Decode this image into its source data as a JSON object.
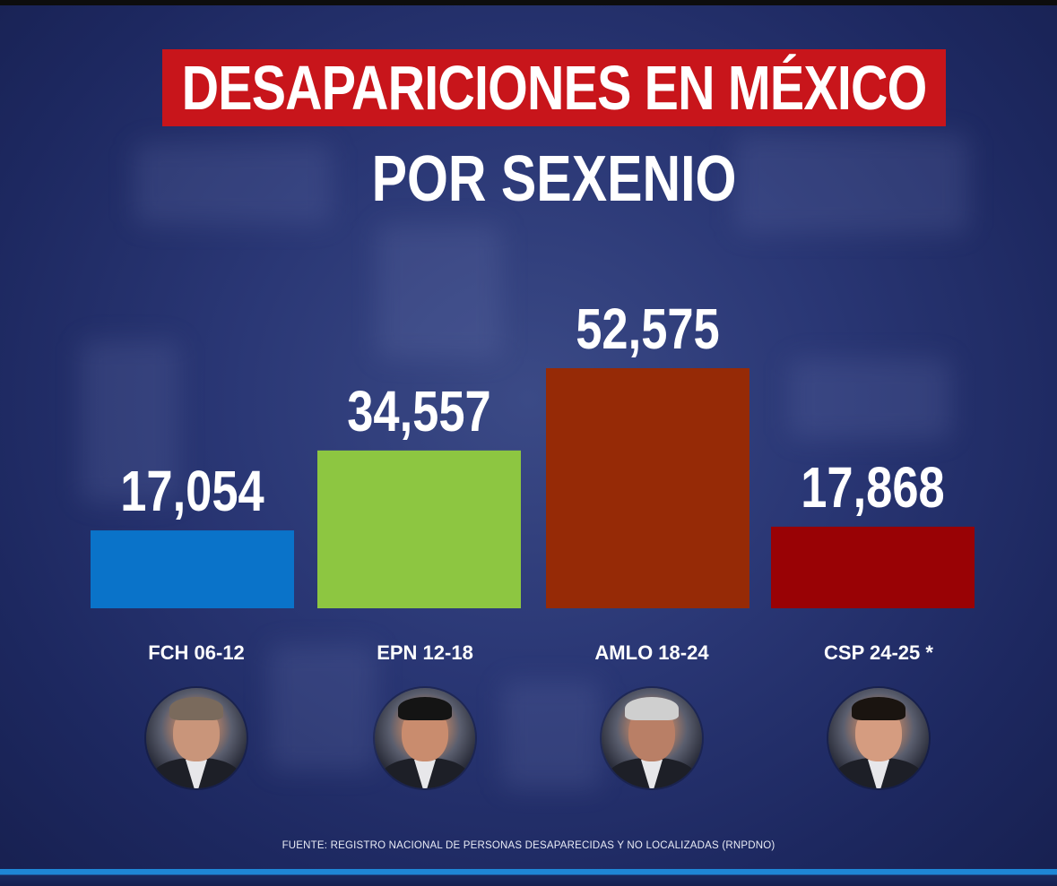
{
  "header": {
    "title": "DESAPARICIONES EN MÉXICO",
    "subtitle": "POR SEXENIO"
  },
  "chart_data": {
    "type": "bar",
    "title": "DESAPARICIONES EN MÉXICO POR SEXENIO",
    "categories": [
      "FCH 06-12",
      "EPN 12-18",
      "AMLO 18-24",
      "CSP 24-25 *"
    ],
    "values": [
      17054,
      34557,
      52575,
      17868
    ],
    "value_labels": [
      "17,054",
      "34,557",
      "52,575",
      "17,868"
    ],
    "colors": [
      "#0a73c9",
      "#8dc641",
      "#962a06",
      "#990205"
    ],
    "xlabel": "",
    "ylabel": "",
    "grid": false,
    "legend": "none"
  },
  "people": [
    {
      "icon": "person-photo-icon",
      "period": "FCH 06-12"
    },
    {
      "icon": "person-photo-icon",
      "period": "EPN 12-18"
    },
    {
      "icon": "person-photo-icon",
      "period": "AMLO 18-24"
    },
    {
      "icon": "person-photo-icon",
      "period": "CSP 24-25 *"
    }
  ],
  "footer": {
    "source": "FUENTE: REGISTRO NACIONAL DE PERSONAS DESAPARECIDAS Y NO LOCALIZADAS (RNPDNO)"
  },
  "colors": {
    "background": "#1f2a5e",
    "title_box": "#c8151b",
    "accent_strip": "#1e86d6"
  }
}
